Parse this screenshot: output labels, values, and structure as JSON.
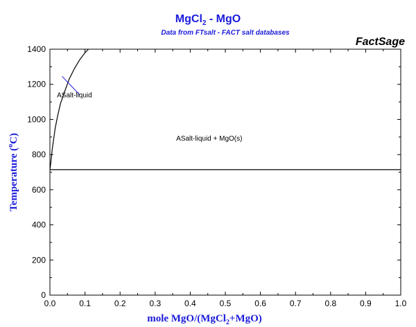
{
  "title": {
    "prefix": "MgCl",
    "sub": "2",
    "suffix": " - MgO"
  },
  "subtitle": "Data from FTsalt - FACT salt databases",
  "brand": "FactSage",
  "chart_data": {
    "type": "line",
    "xlabel": {
      "parts": [
        "mole MgO/(MgCl",
        "2",
        "+MgO)"
      ]
    },
    "ylabel": {
      "parts": [
        "Temperature (",
        "o",
        "C)"
      ]
    },
    "xlim": [
      0,
      1
    ],
    "ylim": [
      0,
      1400
    ],
    "x_ticks": [
      0.0,
      0.1,
      0.2,
      0.3,
      0.4,
      0.5,
      0.6,
      0.7,
      0.8,
      0.9,
      1.0
    ],
    "x_tick_labels": [
      "0.0",
      "0.1",
      "0.2",
      "0.3",
      "0.4",
      "0.5",
      "0.6",
      "0.7",
      "0.8",
      "0.9",
      "1.0"
    ],
    "y_ticks": [
      0,
      200,
      400,
      600,
      800,
      1000,
      1200,
      1400
    ],
    "y_tick_labels": [
      "0",
      "200",
      "400",
      "600",
      "800",
      "1000",
      "1200",
      "1400"
    ],
    "series": [
      {
        "points": [
          [
            0.0,
            714
          ],
          [
            0.003,
            760
          ],
          [
            0.006,
            820
          ],
          [
            0.01,
            880
          ],
          [
            0.015,
            950
          ],
          [
            0.022,
            1020
          ],
          [
            0.03,
            1090
          ],
          [
            0.042,
            1160
          ],
          [
            0.055,
            1230
          ],
          [
            0.07,
            1290
          ],
          [
            0.085,
            1340
          ],
          [
            0.1,
            1380
          ],
          [
            0.11,
            1400
          ]
        ],
        "color": "#000000"
      },
      {
        "points": [
          [
            0.0,
            714
          ],
          [
            1.0,
            714
          ]
        ],
        "color": "#000000"
      }
    ],
    "annotations": [
      {
        "text": "ASalt-liquid",
        "x": 0.02,
        "y": 1125,
        "color": "#1a1adb",
        "pointer": [
          [
            0.085,
            1140
          ],
          [
            0.035,
            1245
          ]
        ]
      },
      {
        "text": "ASalt-liquid + MgO(s)",
        "x": 0.36,
        "y": 880,
        "color": "#000000"
      }
    ]
  }
}
